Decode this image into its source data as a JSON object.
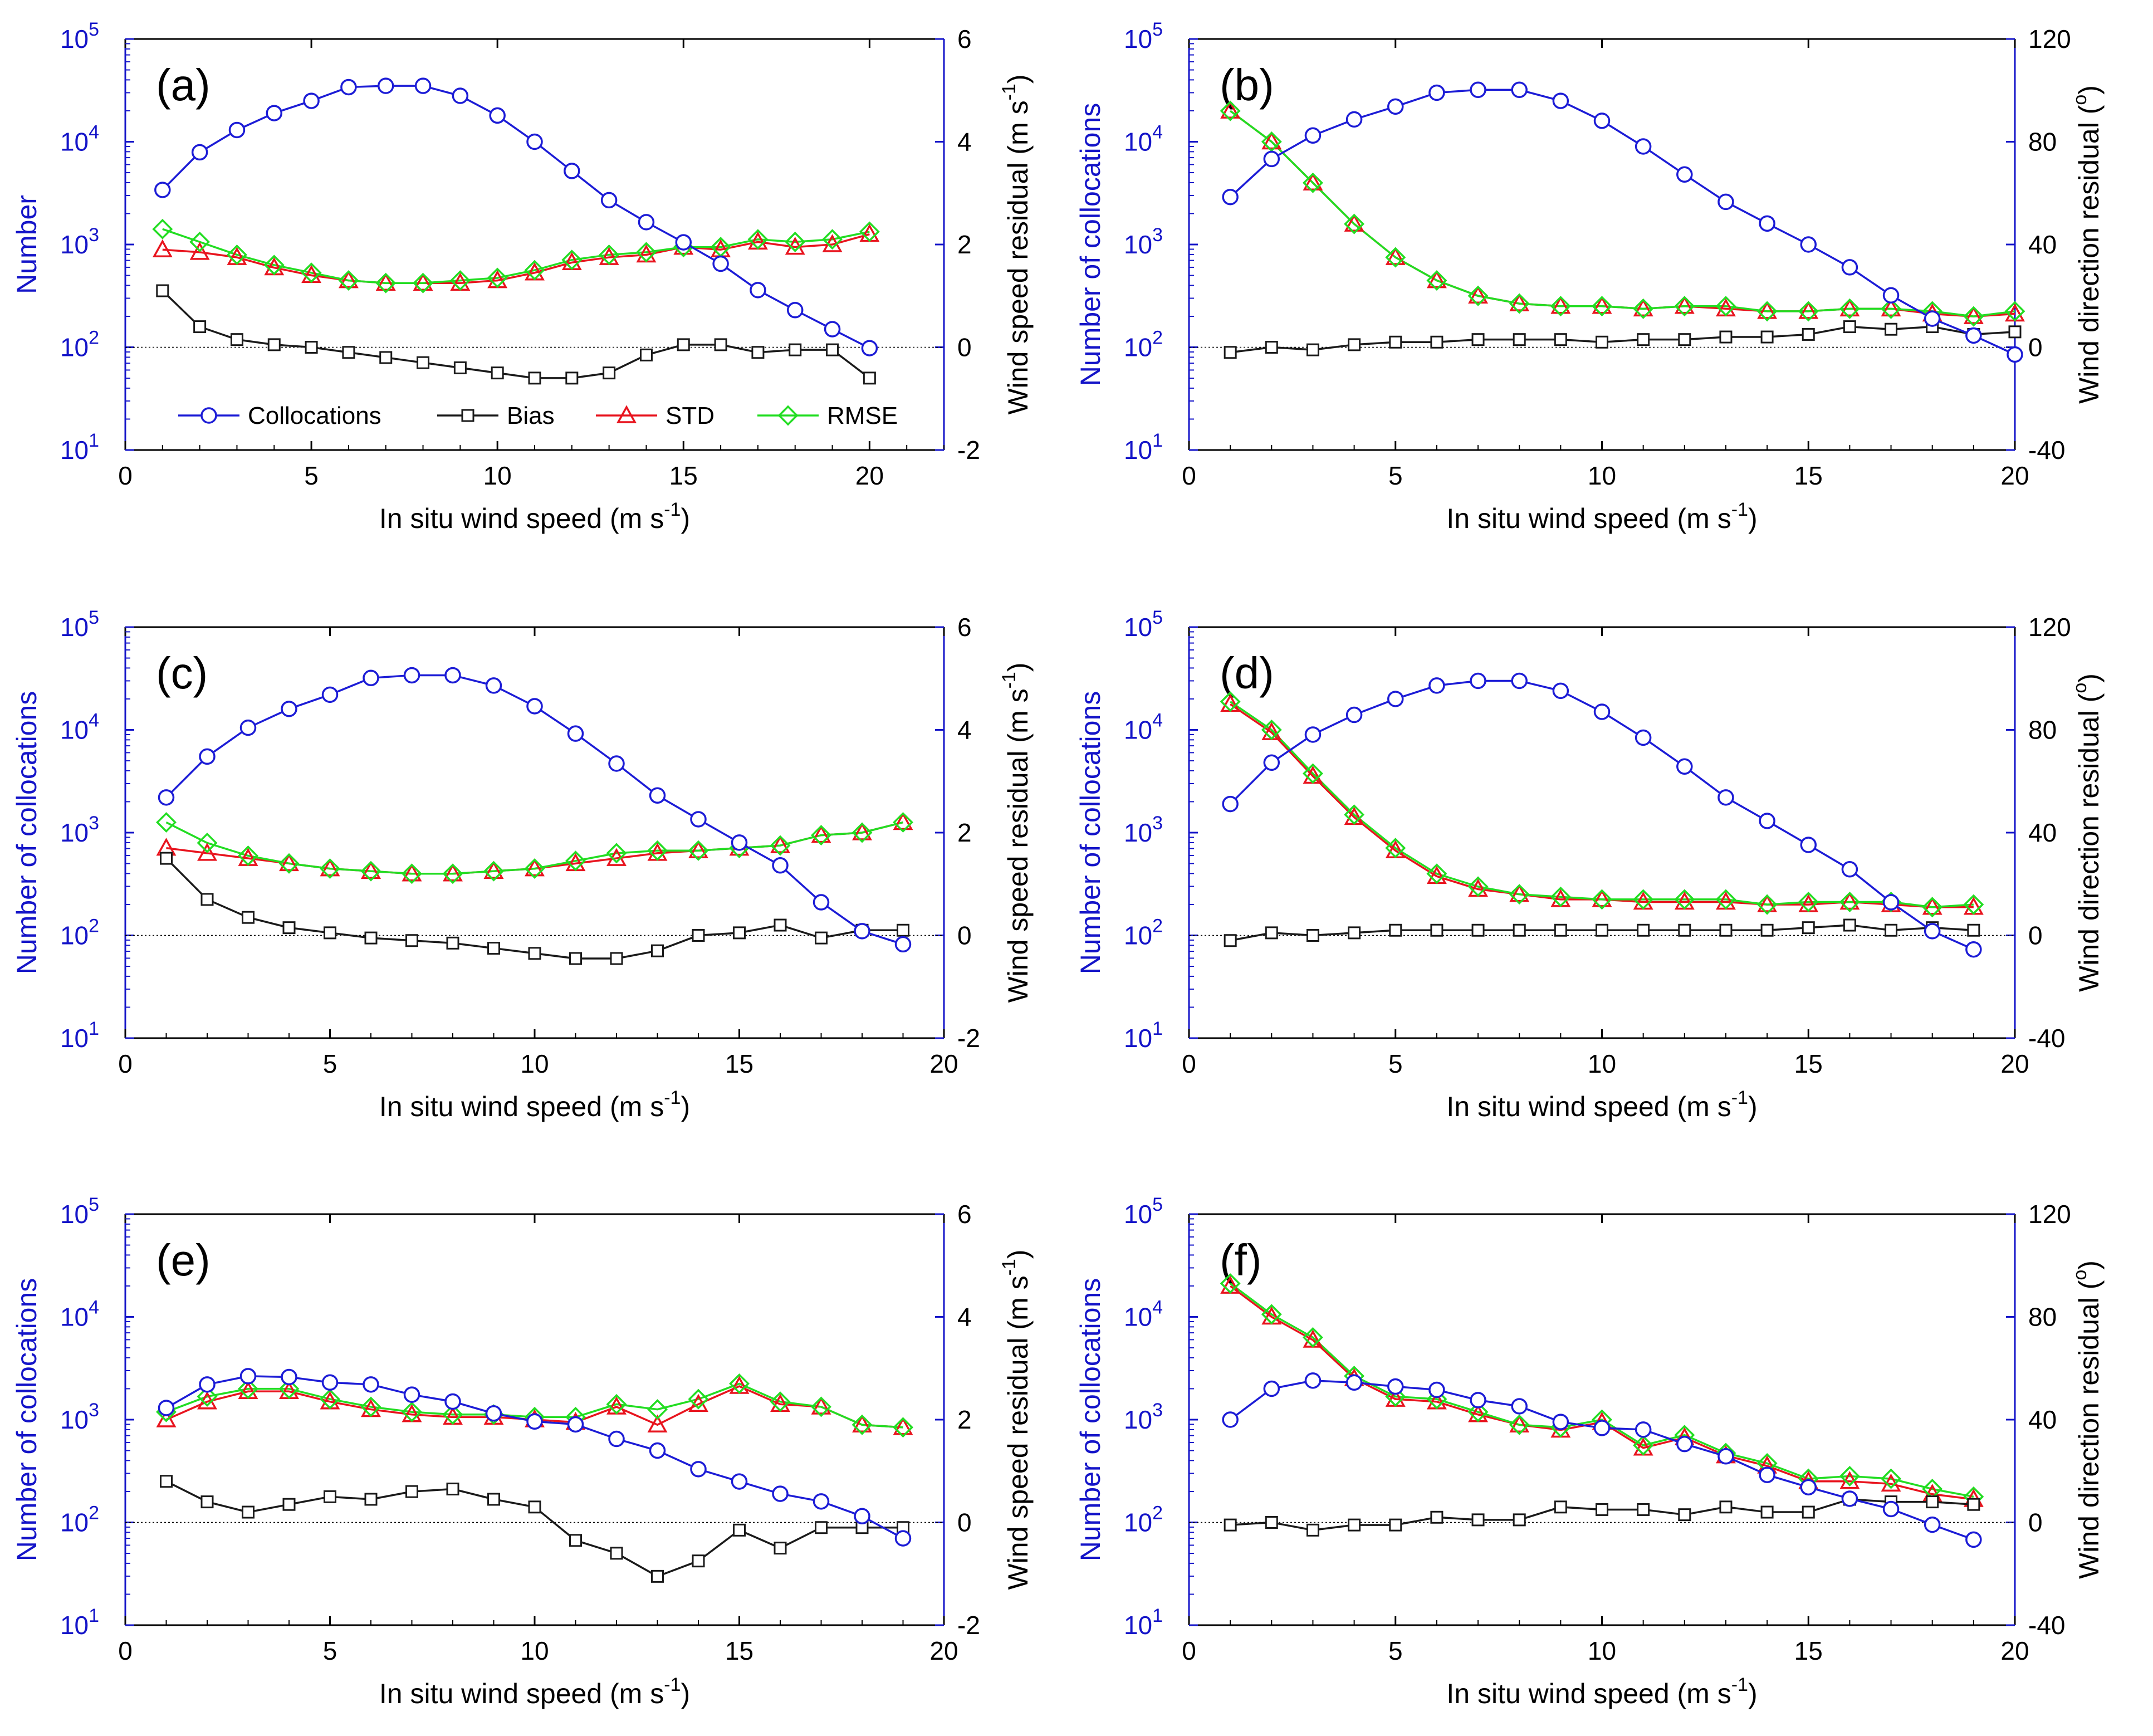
{
  "colors": {
    "collocations": "#1c1cd6",
    "bias": "#1a1a1a",
    "std": "#e8141e",
    "rmse": "#22dd22",
    "left_axis": "#1414c8",
    "right_axis": "#000000"
  },
  "legend": {
    "collocations": "Collocations",
    "bias": "Bias",
    "std": "STD",
    "rmse": "RMSE"
  },
  "chart_data": [
    {
      "panel": "(a)",
      "type": "line",
      "xlabel": "In situ wind speed (m s",
      "xlabel_sup": "-1",
      "xlabel_end": ")",
      "ylabel_left": "Number",
      "ylabel_right": "Wind speed residual (m s",
      "ylabel_right_sup": "-1",
      "ylabel_right_end": ")",
      "xlim": [
        0,
        22
      ],
      "xticks": [
        "0",
        "5",
        "10",
        "15",
        "20"
      ],
      "ylim_left_log": [
        10,
        100000
      ],
      "yticks_left": [
        "10",
        "10",
        "10",
        "10",
        "10"
      ],
      "yticks_left_exp": [
        "1",
        "2",
        "3",
        "4",
        "5"
      ],
      "ylim_right": [
        -2,
        6
      ],
      "yticks_right": [
        "-2",
        "0",
        "2",
        "4",
        "6"
      ],
      "legend_position": "bottom",
      "x": [
        1,
        2,
        3,
        4,
        5,
        6,
        7,
        8,
        9,
        10,
        11,
        12,
        13,
        14,
        15,
        16,
        17,
        18,
        19,
        20
      ],
      "collocations": [
        3400,
        7900,
        13000,
        19000,
        25000,
        34000,
        35000,
        35000,
        28000,
        18000,
        10000,
        5200,
        2700,
        1650,
        1050,
        650,
        360,
        230,
        150,
        98
      ],
      "bias": [
        1.1,
        0.4,
        0.15,
        0.05,
        0.0,
        -0.1,
        -0.2,
        -0.3,
        -0.4,
        -0.5,
        -0.6,
        -0.6,
        -0.5,
        -0.15,
        0.05,
        0.05,
        -0.1,
        -0.05,
        -0.05,
        -0.6
      ],
      "std": [
        1.9,
        1.85,
        1.75,
        1.55,
        1.4,
        1.3,
        1.25,
        1.25,
        1.25,
        1.3,
        1.45,
        1.65,
        1.75,
        1.8,
        1.95,
        1.9,
        2.05,
        1.95,
        2.0,
        2.2
      ],
      "rmse": [
        2.3,
        2.05,
        1.8,
        1.6,
        1.45,
        1.3,
        1.25,
        1.25,
        1.3,
        1.35,
        1.5,
        1.7,
        1.8,
        1.85,
        1.95,
        1.95,
        2.1,
        2.05,
        2.1,
        2.25
      ]
    },
    {
      "panel": "(b)",
      "type": "line",
      "xlabel": "In situ wind speed (m s",
      "xlabel_sup": "-1",
      "xlabel_end": ")",
      "ylabel_left": "Number of collocations",
      "ylabel_right": "Wind direction residual (",
      "ylabel_right_sup": "o",
      "ylabel_right_end": ")",
      "xlim": [
        0,
        20
      ],
      "xticks": [
        "0",
        "5",
        "10",
        "15",
        "20"
      ],
      "ylim_left_log": [
        10,
        100000
      ],
      "yticks_left": [
        "10",
        "10",
        "10",
        "10",
        "10"
      ],
      "yticks_left_exp": [
        "1",
        "2",
        "3",
        "4",
        "5"
      ],
      "ylim_right": [
        -40,
        120
      ],
      "yticks_right": [
        "-40",
        "0",
        "40",
        "80",
        "120"
      ],
      "x": [
        1,
        2,
        3,
        4,
        5,
        6,
        7,
        8,
        9,
        10,
        11,
        12,
        13,
        14,
        15,
        16,
        17,
        18,
        19,
        20
      ],
      "collocations": [
        2900,
        6800,
        11500,
        16500,
        22000,
        30000,
        32000,
        32000,
        25000,
        16000,
        9000,
        4800,
        2600,
        1600,
        1000,
        600,
        320,
        190,
        130,
        85
      ],
      "bias": [
        -2,
        0,
        -1,
        1,
        2,
        2,
        3,
        3,
        3,
        2,
        3,
        3,
        4,
        4,
        5,
        8,
        7,
        8,
        5,
        6
      ],
      "std": [
        92,
        80,
        64,
        48,
        35,
        26,
        20,
        17,
        16,
        16,
        15,
        16,
        15,
        14,
        14,
        15,
        15,
        13,
        12,
        13
      ],
      "rmse": [
        92,
        80,
        64,
        48,
        35,
        26,
        20,
        17,
        16,
        16,
        15,
        16,
        16,
        14,
        14,
        15,
        15,
        14,
        12,
        14
      ]
    },
    {
      "panel": "(c)",
      "type": "line",
      "xlabel": "In situ wind speed (m s",
      "xlabel_sup": "-1",
      "xlabel_end": ")",
      "ylabel_left": "Number of collocations",
      "ylabel_right": "Wind speed residual (m s",
      "ylabel_right_sup": "-1",
      "ylabel_right_end": ")",
      "xlim": [
        0,
        20
      ],
      "xticks": [
        "0",
        "5",
        "10",
        "15",
        "20"
      ],
      "ylim_left_log": [
        10,
        100000
      ],
      "yticks_left": [
        "10",
        "10",
        "10",
        "10",
        "10"
      ],
      "yticks_left_exp": [
        "1",
        "2",
        "3",
        "4",
        "5"
      ],
      "ylim_right": [
        -2,
        6
      ],
      "yticks_right": [
        "-2",
        "0",
        "2",
        "4",
        "6"
      ],
      "x": [
        1,
        2,
        3,
        4,
        5,
        6,
        7,
        8,
        9,
        10,
        11,
        12,
        13,
        14,
        15,
        16,
        17,
        18,
        19
      ],
      "collocations": [
        2200,
        5500,
        10500,
        16000,
        22000,
        32000,
        34000,
        34000,
        27000,
        17000,
        9200,
        4700,
        2300,
        1350,
        800,
        480,
        210,
        110,
        82
      ],
      "bias": [
        1.5,
        0.7,
        0.35,
        0.15,
        0.05,
        -0.05,
        -0.1,
        -0.15,
        -0.25,
        -0.35,
        -0.45,
        -0.45,
        -0.3,
        0.0,
        0.05,
        0.2,
        -0.05,
        0.1,
        0.1
      ],
      "std": [
        1.7,
        1.6,
        1.5,
        1.4,
        1.3,
        1.25,
        1.2,
        1.2,
        1.25,
        1.3,
        1.4,
        1.5,
        1.6,
        1.65,
        1.7,
        1.75,
        1.95,
        2.0,
        2.2
      ],
      "rmse": [
        2.2,
        1.8,
        1.55,
        1.4,
        1.3,
        1.25,
        1.2,
        1.2,
        1.25,
        1.3,
        1.45,
        1.6,
        1.65,
        1.65,
        1.7,
        1.75,
        1.95,
        2.0,
        2.2
      ]
    },
    {
      "panel": "(d)",
      "type": "line",
      "xlabel": "In situ wind speed (m s",
      "xlabel_sup": "-1",
      "xlabel_end": ")",
      "ylabel_left": "Number of collocations",
      "ylabel_right": "Wind direction residual (",
      "ylabel_right_sup": "o",
      "ylabel_right_end": ")",
      "xlim": [
        0,
        20
      ],
      "xticks": [
        "0",
        "5",
        "10",
        "15",
        "20"
      ],
      "ylim_left_log": [
        10,
        100000
      ],
      "yticks_left": [
        "10",
        "10",
        "10",
        "10",
        "10"
      ],
      "yticks_left_exp": [
        "1",
        "2",
        "3",
        "4",
        "5"
      ],
      "ylim_right": [
        -40,
        120
      ],
      "yticks_right": [
        "-40",
        "0",
        "40",
        "80",
        "120"
      ],
      "x": [
        1,
        2,
        3,
        4,
        5,
        6,
        7,
        8,
        9,
        10,
        11,
        12,
        13,
        14,
        15,
        16,
        17,
        18,
        19
      ],
      "collocations": [
        1900,
        4800,
        9000,
        14000,
        20000,
        27000,
        30000,
        30000,
        24000,
        15000,
        8400,
        4400,
        2200,
        1300,
        760,
        440,
        210,
        110,
        73
      ],
      "bias": [
        -2,
        1,
        0,
        1,
        2,
        2,
        2,
        2,
        2,
        2,
        2,
        2,
        2,
        2,
        3,
        4,
        2,
        3,
        2
      ],
      "std": [
        90,
        79,
        62,
        46,
        33,
        23,
        18,
        16,
        14,
        14,
        13,
        13,
        13,
        12,
        12,
        13,
        12,
        11,
        11
      ],
      "rmse": [
        91,
        80,
        63,
        47,
        34,
        24,
        19,
        16,
        15,
        14,
        14,
        14,
        14,
        12,
        13,
        13,
        13,
        11,
        12
      ]
    },
    {
      "panel": "(e)",
      "type": "line",
      "xlabel": "In situ wind speed (m s",
      "xlabel_sup": "-1",
      "xlabel_end": ")",
      "ylabel_left": "Number of collocations",
      "ylabel_right": "Wind speed residual (m s",
      "ylabel_right_sup": "-1",
      "ylabel_right_end": ")",
      "xlim": [
        0,
        20
      ],
      "xticks": [
        "0",
        "5",
        "10",
        "15",
        "20"
      ],
      "ylim_left_log": [
        10,
        100000
      ],
      "yticks_left": [
        "10",
        "10",
        "10",
        "10",
        "10"
      ],
      "yticks_left_exp": [
        "1",
        "2",
        "3",
        "4",
        "5"
      ],
      "ylim_right": [
        -2,
        6
      ],
      "yticks_right": [
        "-2",
        "0",
        "2",
        "4",
        "6"
      ],
      "x": [
        1,
        2,
        3,
        4,
        5,
        6,
        7,
        8,
        9,
        10,
        11,
        12,
        13,
        14,
        15,
        16,
        17,
        18,
        19
      ],
      "collocations": [
        1300,
        2200,
        2650,
        2600,
        2300,
        2200,
        1750,
        1500,
        1150,
        960,
        900,
        650,
        500,
        330,
        250,
        190,
        160,
        115,
        70
      ],
      "bias": [
        0.8,
        0.4,
        0.2,
        0.35,
        0.5,
        0.45,
        0.6,
        0.65,
        0.45,
        0.3,
        -0.35,
        -0.6,
        -1.05,
        -0.75,
        -0.15,
        -0.5,
        -0.1,
        -0.1,
        -0.1
      ],
      "std": [
        2.0,
        2.35,
        2.55,
        2.55,
        2.35,
        2.2,
        2.1,
        2.05,
        2.05,
        2.0,
        1.95,
        2.25,
        1.9,
        2.3,
        2.65,
        2.3,
        2.25,
        1.9,
        1.85
      ],
      "rmse": [
        2.15,
        2.45,
        2.6,
        2.6,
        2.4,
        2.25,
        2.15,
        2.1,
        2.1,
        2.05,
        2.05,
        2.3,
        2.2,
        2.4,
        2.7,
        2.35,
        2.25,
        1.9,
        1.85
      ]
    },
    {
      "panel": "(f)",
      "type": "line",
      "xlabel": "In situ wind speed (m s",
      "xlabel_sup": "-1",
      "xlabel_end": ")",
      "ylabel_left": "Number of collocations",
      "ylabel_right": "Wind direction residual (",
      "ylabel_right_sup": "o",
      "ylabel_right_end": ")",
      "xlim": [
        0,
        20
      ],
      "xticks": [
        "0",
        "5",
        "10",
        "15",
        "20"
      ],
      "ylim_left_log": [
        10,
        100000
      ],
      "yticks_left": [
        "10",
        "10",
        "10",
        "10",
        "10"
      ],
      "yticks_left_exp": [
        "1",
        "2",
        "3",
        "4",
        "5"
      ],
      "ylim_right": [
        -40,
        120
      ],
      "yticks_right": [
        "-40",
        "0",
        "40",
        "80",
        "120"
      ],
      "x": [
        1,
        2,
        3,
        4,
        5,
        6,
        7,
        8,
        9,
        10,
        11,
        12,
        13,
        14,
        15,
        16,
        17,
        18,
        19
      ],
      "collocations": [
        1000,
        2000,
        2400,
        2300,
        2100,
        1950,
        1550,
        1350,
        950,
        830,
        800,
        580,
        440,
        290,
        220,
        170,
        135,
        95,
        68
      ],
      "bias": [
        -1,
        0,
        -3,
        -1,
        -1,
        2,
        1,
        1,
        6,
        5,
        5,
        3,
        6,
        4,
        4,
        9,
        8,
        8,
        7
      ],
      "std": [
        92,
        80,
        71,
        56,
        48,
        47,
        42,
        38,
        36,
        39,
        29,
        33,
        26,
        22,
        16,
        16,
        15,
        11,
        9
      ],
      "rmse": [
        93,
        81,
        72,
        57,
        49,
        48,
        43,
        38,
        37,
        40,
        30,
        34,
        27,
        23,
        17,
        18,
        17,
        13,
        10
      ]
    }
  ]
}
